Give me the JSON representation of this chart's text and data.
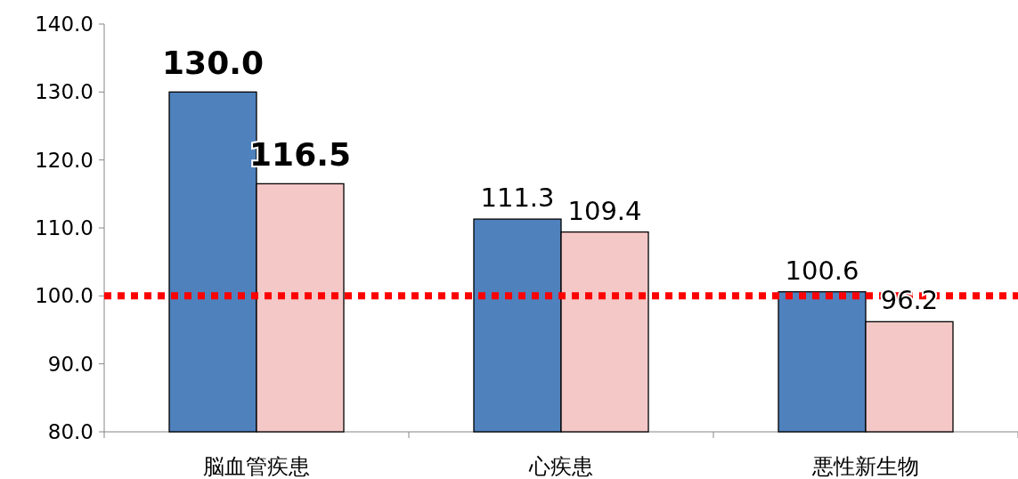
{
  "chart_data": {
    "type": "bar",
    "categories": [
      "脳血管疾患",
      "心疾患",
      "悪性新生物"
    ],
    "series": [
      {
        "color": "#4f81bd",
        "values": [
          130.0,
          111.3,
          100.6
        ],
        "value_labels": [
          "130.0",
          "111.3",
          "100.6"
        ]
      },
      {
        "color": "#f5c8c8",
        "values": [
          116.5,
          109.4,
          96.2
        ],
        "value_labels": [
          "116.5",
          "109.4",
          "96.2"
        ]
      }
    ],
    "ylim": [
      80,
      140
    ],
    "yticks": [
      {
        "value": 80,
        "label": "80.0"
      },
      {
        "value": 90,
        "label": "90.0"
      },
      {
        "value": 100,
        "label": "100.0"
      },
      {
        "value": 110,
        "label": "110.0"
      },
      {
        "value": 120,
        "label": "120.0"
      },
      {
        "value": 130,
        "label": "130.0"
      },
      {
        "value": 140,
        "label": "140.0"
      }
    ],
    "ref_lines": [
      {
        "axis": "y",
        "value": 100,
        "color": "#ff0000",
        "line_style": "dotted"
      }
    ],
    "grid": false
  }
}
